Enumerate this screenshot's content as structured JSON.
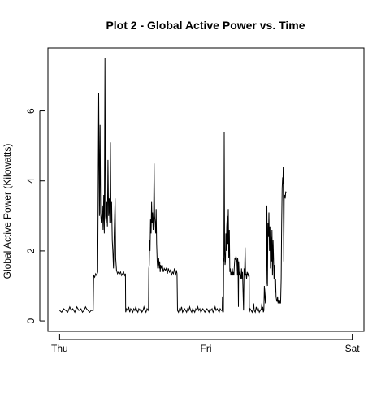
{
  "chart_data": {
    "type": "line",
    "title": "Plot 2 - Global Active Power vs. Time",
    "xlabel": "",
    "ylabel": "Global Active Power (Kilowatts)",
    "x_ticks": [
      {
        "label": "Thu",
        "value": 0
      },
      {
        "label": "Fri",
        "value": 1440
      },
      {
        "label": "Sat",
        "value": 2880
      }
    ],
    "y_ticks": [
      0,
      2,
      4,
      6
    ],
    "xlim": [
      -115,
      2995
    ],
    "ylim": [
      -0.3,
      7.8
    ],
    "grid": false,
    "series": [
      {
        "color": "#000000",
        "points": [
          [
            0,
            0.3
          ],
          [
            20,
            0.25
          ],
          [
            40,
            0.35
          ],
          [
            60,
            0.3
          ],
          [
            80,
            0.25
          ],
          [
            100,
            0.4
          ],
          [
            115,
            0.3
          ],
          [
            130,
            0.35
          ],
          [
            150,
            0.25
          ],
          [
            170,
            0.4
          ],
          [
            190,
            0.3
          ],
          [
            210,
            0.35
          ],
          [
            225,
            0.25
          ],
          [
            240,
            0.3
          ],
          [
            255,
            0.4
          ],
          [
            265,
            0.35
          ],
          [
            280,
            0.3
          ],
          [
            295,
            0.25
          ],
          [
            310,
            0.3
          ],
          [
            330,
            0.3
          ],
          [
            335,
            1.3
          ],
          [
            345,
            1.25
          ],
          [
            355,
            1.35
          ],
          [
            365,
            1.3
          ],
          [
            375,
            1.4
          ],
          [
            385,
            6.5
          ],
          [
            392,
            3.0
          ],
          [
            398,
            5.6
          ],
          [
            404,
            3.1
          ],
          [
            410,
            2.8
          ],
          [
            416,
            3.0
          ],
          [
            422,
            3.3
          ],
          [
            428,
            2.6
          ],
          [
            434,
            3.6
          ],
          [
            440,
            2.5
          ],
          [
            446,
            7.5
          ],
          [
            452,
            3.0
          ],
          [
            458,
            2.8
          ],
          [
            464,
            3.4
          ],
          [
            470,
            2.7
          ],
          [
            476,
            4.6
          ],
          [
            482,
            3.0
          ],
          [
            488,
            3.5
          ],
          [
            494,
            2.8
          ],
          [
            500,
            5.1
          ],
          [
            506,
            2.8
          ],
          [
            512,
            3.4
          ],
          [
            518,
            2.3
          ],
          [
            524,
            2.0
          ],
          [
            530,
            1.5
          ],
          [
            538,
            2.6
          ],
          [
            546,
            3.5
          ],
          [
            552,
            1.8
          ],
          [
            560,
            1.45
          ],
          [
            570,
            1.35
          ],
          [
            580,
            1.4
          ],
          [
            590,
            1.35
          ],
          [
            600,
            1.4
          ],
          [
            610,
            1.3
          ],
          [
            620,
            1.35
          ],
          [
            630,
            1.4
          ],
          [
            640,
            1.3
          ],
          [
            648,
            1.35
          ],
          [
            650,
            0.25
          ],
          [
            660,
            0.35
          ],
          [
            670,
            0.3
          ],
          [
            680,
            0.4
          ],
          [
            690,
            0.25
          ],
          [
            700,
            0.35
          ],
          [
            710,
            0.3
          ],
          [
            720,
            0.25
          ],
          [
            730,
            0.35
          ],
          [
            740,
            0.3
          ],
          [
            750,
            0.4
          ],
          [
            760,
            0.3
          ],
          [
            770,
            0.25
          ],
          [
            780,
            0.35
          ],
          [
            790,
            0.3
          ],
          [
            800,
            0.35
          ],
          [
            810,
            0.25
          ],
          [
            820,
            0.3
          ],
          [
            830,
            0.4
          ],
          [
            840,
            0.3
          ],
          [
            850,
            0.25
          ],
          [
            860,
            0.35
          ],
          [
            870,
            0.3
          ],
          [
            875,
            0.35
          ],
          [
            878,
            1.5
          ],
          [
            882,
            1.6
          ],
          [
            886,
            2.3
          ],
          [
            890,
            2.0
          ],
          [
            895,
            2.9
          ],
          [
            900,
            2.5
          ],
          [
            905,
            3.4
          ],
          [
            910,
            2.8
          ],
          [
            915,
            3.1
          ],
          [
            920,
            2.6
          ],
          [
            925,
            3.0
          ],
          [
            930,
            4.5
          ],
          [
            935,
            3.0
          ],
          [
            940,
            2.8
          ],
          [
            945,
            2.5
          ],
          [
            950,
            3.2
          ],
          [
            955,
            2.2
          ],
          [
            960,
            1.7
          ],
          [
            965,
            1.5
          ],
          [
            970,
            1.6
          ],
          [
            975,
            1.8
          ],
          [
            980,
            1.5
          ],
          [
            985,
            1.7
          ],
          [
            990,
            1.4
          ],
          [
            995,
            1.6
          ],
          [
            1000,
            1.5
          ],
          [
            1010,
            1.6
          ],
          [
            1020,
            1.4
          ],
          [
            1030,
            1.5
          ],
          [
            1040,
            1.45
          ],
          [
            1050,
            1.5
          ],
          [
            1060,
            1.35
          ],
          [
            1070,
            1.5
          ],
          [
            1080,
            1.4
          ],
          [
            1090,
            1.45
          ],
          [
            1100,
            1.3
          ],
          [
            1110,
            1.4
          ],
          [
            1120,
            1.35
          ],
          [
            1130,
            1.5
          ],
          [
            1140,
            1.3
          ],
          [
            1150,
            1.45
          ],
          [
            1155,
            1.35
          ],
          [
            1160,
            0.3
          ],
          [
            1170,
            0.25
          ],
          [
            1180,
            0.35
          ],
          [
            1190,
            0.3
          ],
          [
            1200,
            0.4
          ],
          [
            1210,
            0.25
          ],
          [
            1220,
            0.3
          ],
          [
            1230,
            0.35
          ],
          [
            1240,
            0.3
          ],
          [
            1250,
            0.25
          ],
          [
            1260,
            0.35
          ],
          [
            1270,
            0.3
          ],
          [
            1280,
            0.4
          ],
          [
            1290,
            0.3
          ],
          [
            1300,
            0.25
          ],
          [
            1310,
            0.35
          ],
          [
            1320,
            0.3
          ],
          [
            1330,
            0.25
          ],
          [
            1340,
            0.35
          ],
          [
            1350,
            0.3
          ],
          [
            1360,
            0.4
          ],
          [
            1370,
            0.3
          ],
          [
            1380,
            0.35
          ],
          [
            1390,
            0.25
          ],
          [
            1400,
            0.3
          ],
          [
            1410,
            0.35
          ],
          [
            1420,
            0.3
          ],
          [
            1430,
            0.25
          ],
          [
            1440,
            0.3
          ],
          [
            1450,
            0.35
          ],
          [
            1460,
            0.3
          ],
          [
            1470,
            0.25
          ],
          [
            1480,
            0.35
          ],
          [
            1490,
            0.3
          ],
          [
            1500,
            0.35
          ],
          [
            1510,
            0.25
          ],
          [
            1520,
            0.3
          ],
          [
            1530,
            0.4
          ],
          [
            1540,
            0.3
          ],
          [
            1550,
            0.35
          ],
          [
            1560,
            0.3
          ],
          [
            1570,
            0.25
          ],
          [
            1580,
            0.35
          ],
          [
            1590,
            0.3
          ],
          [
            1600,
            0.3
          ],
          [
            1602,
            0.7
          ],
          [
            1604,
            0.25
          ],
          [
            1606,
            0.3
          ],
          [
            1612,
            0.25
          ],
          [
            1614,
            1.8
          ],
          [
            1617,
            1.7
          ],
          [
            1620,
            5.4
          ],
          [
            1624,
            2.0
          ],
          [
            1628,
            1.6
          ],
          [
            1632,
            1.7
          ],
          [
            1636,
            2.5
          ],
          [
            1640,
            2.0
          ],
          [
            1645,
            2.7
          ],
          [
            1650,
            3.0
          ],
          [
            1655,
            2.2
          ],
          [
            1660,
            3.2
          ],
          [
            1665,
            1.8
          ],
          [
            1670,
            2.6
          ],
          [
            1675,
            1.4
          ],
          [
            1680,
            1.5
          ],
          [
            1685,
            1.3
          ],
          [
            1690,
            1.4
          ],
          [
            1695,
            1.3
          ],
          [
            1700,
            1.5
          ],
          [
            1705,
            1.3
          ],
          [
            1710,
            1.4
          ],
          [
            1715,
            1.3
          ],
          [
            1720,
            1.6
          ],
          [
            1725,
            1.8
          ],
          [
            1730,
            1.75
          ],
          [
            1735,
            1.85
          ],
          [
            1740,
            1.8
          ],
          [
            1745,
            1.7
          ],
          [
            1750,
            1.3
          ],
          [
            1752,
            1.8
          ],
          [
            1755,
            1.7
          ],
          [
            1760,
            0.4
          ],
          [
            1762,
            1.7
          ],
          [
            1766,
            1.4
          ],
          [
            1770,
            1.3
          ],
          [
            1775,
            1.4
          ],
          [
            1780,
            1.3
          ],
          [
            1785,
            1.2
          ],
          [
            1790,
            1.5
          ],
          [
            1795,
            1.2
          ],
          [
            1800,
            1.4
          ],
          [
            1805,
            0.8
          ],
          [
            1810,
            0.3
          ],
          [
            1815,
            1.5
          ],
          [
            1820,
            1.3
          ],
          [
            1825,
            2.1
          ],
          [
            1830,
            1.3
          ],
          [
            1835,
            1.35
          ],
          [
            1840,
            1.2
          ],
          [
            1845,
            1.4
          ],
          [
            1850,
            1.35
          ],
          [
            1855,
            1.3
          ],
          [
            1860,
            1.35
          ],
          [
            1865,
            1.3
          ],
          [
            1867,
            0.25
          ],
          [
            1875,
            0.35
          ],
          [
            1885,
            0.3
          ],
          [
            1895,
            0.25
          ],
          [
            1905,
            0.35
          ],
          [
            1910,
            0.5
          ],
          [
            1915,
            0.3
          ],
          [
            1925,
            0.25
          ],
          [
            1935,
            0.4
          ],
          [
            1945,
            0.3
          ],
          [
            1955,
            0.35
          ],
          [
            1965,
            0.25
          ],
          [
            1975,
            0.3
          ],
          [
            1985,
            0.35
          ],
          [
            1990,
            0.5
          ],
          [
            1995,
            0.3
          ],
          [
            2000,
            0.4
          ],
          [
            2005,
            0.25
          ],
          [
            2010,
            0.3
          ],
          [
            2015,
            1.0
          ],
          [
            2020,
            0.7
          ],
          [
            2025,
            0.5
          ],
          [
            2030,
            0.9
          ],
          [
            2035,
            1.1
          ],
          [
            2040,
            3.3
          ],
          [
            2045,
            1.0
          ],
          [
            2050,
            2.8
          ],
          [
            2055,
            2.4
          ],
          [
            2060,
            3.1
          ],
          [
            2065,
            2.0
          ],
          [
            2070,
            2.7
          ],
          [
            2075,
            1.5
          ],
          [
            2080,
            2.4
          ],
          [
            2085,
            1.7
          ],
          [
            2090,
            2.6
          ],
          [
            2095,
            1.3
          ],
          [
            2100,
            2.3
          ],
          [
            2105,
            1.8
          ],
          [
            2110,
            1.2
          ],
          [
            2115,
            1.6
          ],
          [
            2120,
            0.8
          ],
          [
            2125,
            1.2
          ],
          [
            2130,
            0.7
          ],
          [
            2135,
            0.6
          ],
          [
            2140,
            0.55
          ],
          [
            2145,
            0.7
          ],
          [
            2150,
            0.5
          ],
          [
            2155,
            0.6
          ],
          [
            2160,
            0.55
          ],
          [
            2165,
            0.5
          ],
          [
            2170,
            0.6
          ],
          [
            2175,
            0.5
          ],
          [
            2180,
            1.2
          ],
          [
            2185,
            2.8
          ],
          [
            2190,
            3.8
          ],
          [
            2195,
            4.1
          ],
          [
            2198,
            3.9
          ],
          [
            2200,
            4.4
          ],
          [
            2203,
            3.0
          ],
          [
            2206,
            1.7
          ],
          [
            2210,
            3.5
          ],
          [
            2215,
            3.6
          ],
          [
            2220,
            3.5
          ],
          [
            2225,
            3.7
          ],
          [
            2230,
            3.65
          ]
        ]
      }
    ]
  }
}
